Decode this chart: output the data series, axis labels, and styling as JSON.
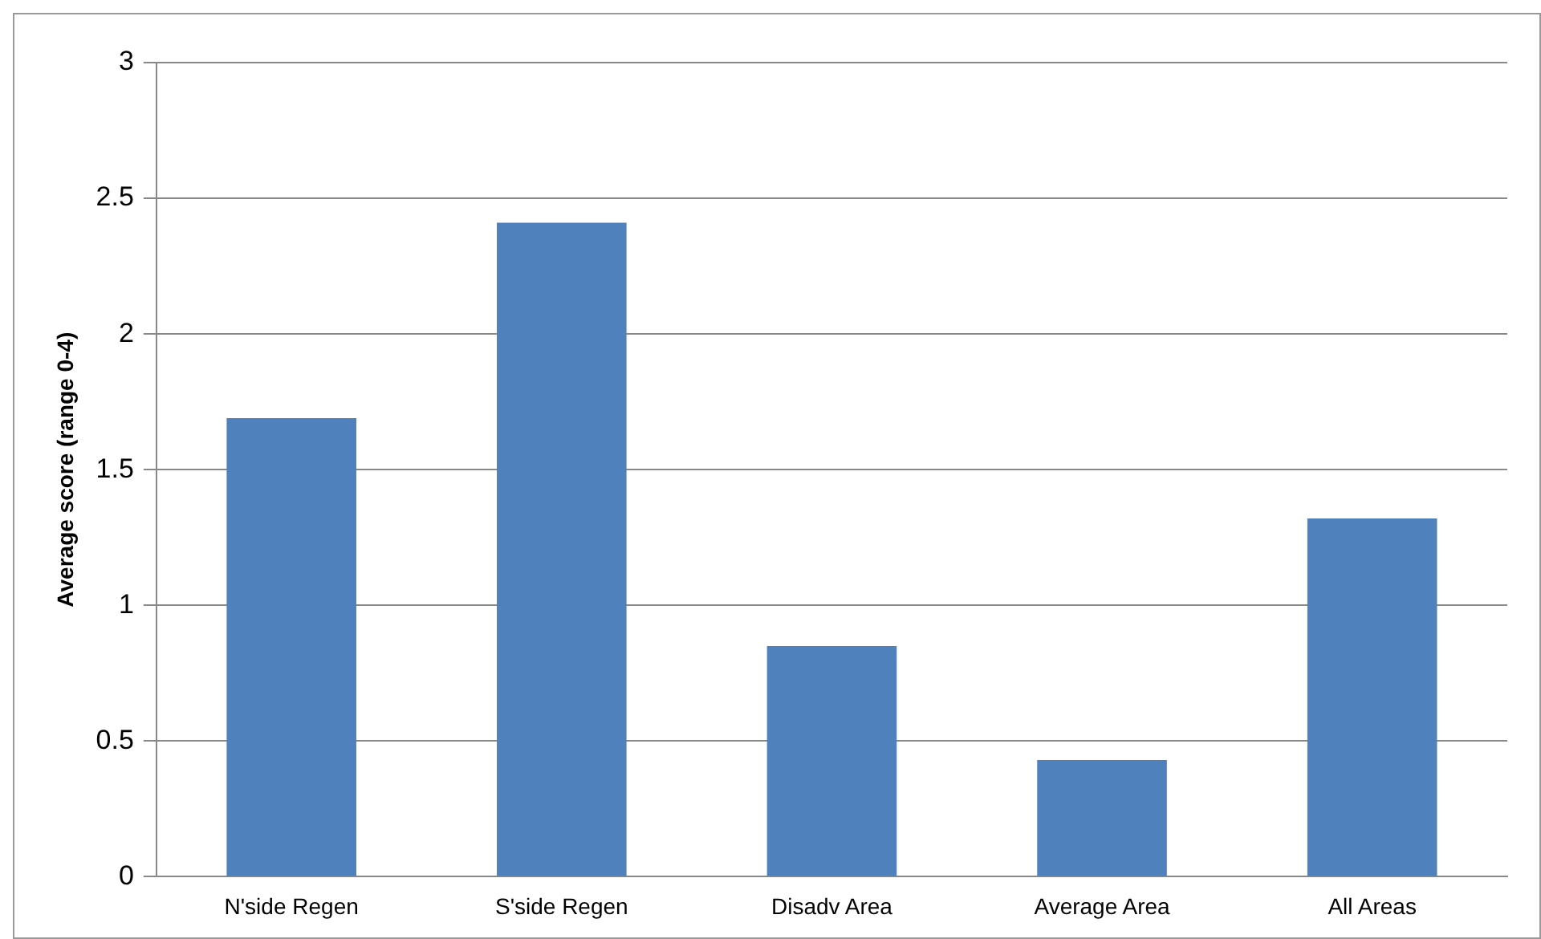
{
  "chart_data": {
    "type": "bar",
    "ylabel": "Average score (range 0-4)",
    "categories": [
      "N'side Regen",
      "S'side Regen",
      "Disadv Area",
      "Average Area",
      "All Areas"
    ],
    "values": [
      1.69,
      2.41,
      0.85,
      0.43,
      1.32
    ],
    "color": "#4f81bd",
    "ylim": [
      0,
      3
    ],
    "yticks": [
      0,
      0.5,
      1,
      1.5,
      2,
      2.5,
      3
    ],
    "grid": "y",
    "legend": false
  }
}
